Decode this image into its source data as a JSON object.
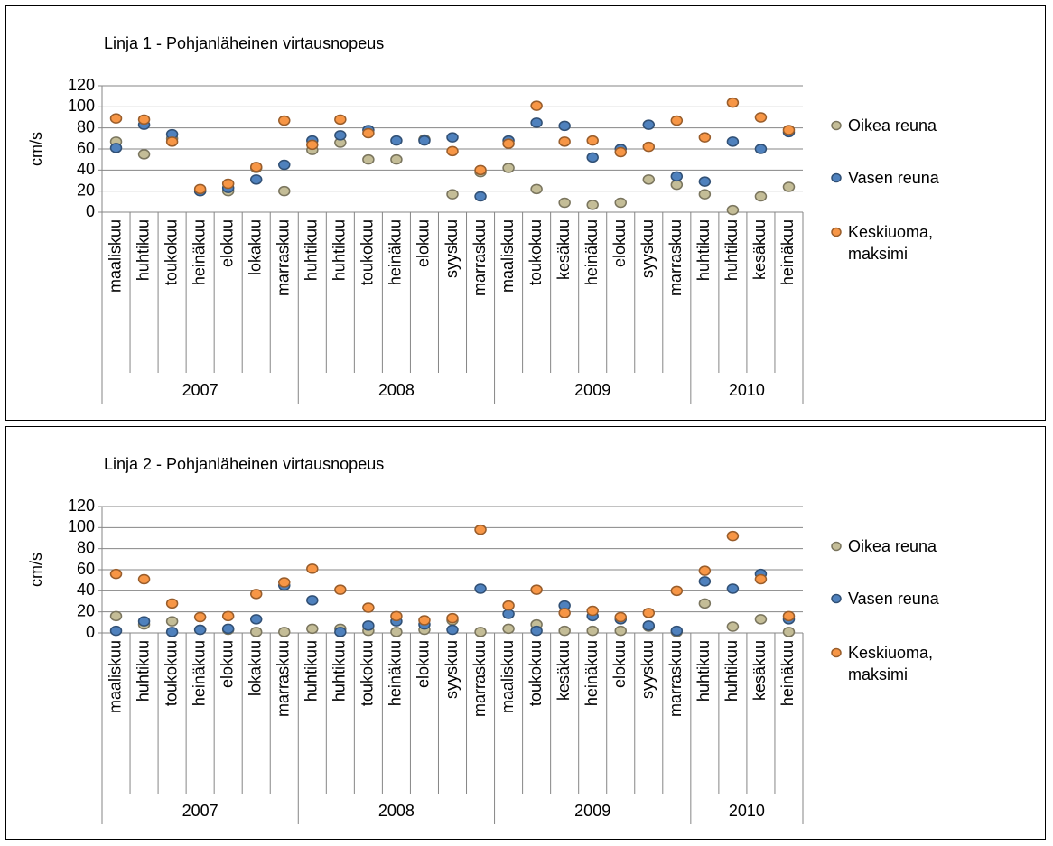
{
  "chart_data": [
    {
      "type": "scatter",
      "title": "Linja 1 - Pohjanläheinen  virtausnopeus",
      "y_label": "cm/s",
      "groups": [
        {
          "label": "2007",
          "categories": [
            "maaliskuu",
            "huhtikuu",
            "toukokuu",
            "heinäkuu",
            "elokuu",
            "lokakuu",
            "marraskuu"
          ]
        },
        {
          "label": "2008",
          "categories": [
            "huhtikuu",
            "huhtikuu",
            "toukokuu",
            "heinäkuu",
            "elokuu",
            "syyskuu",
            "marraskuu"
          ]
        },
        {
          "label": "2009",
          "categories": [
            "maaliskuu",
            "toukokuu",
            "kesäkuu",
            "heinäkuu",
            "elokuu",
            "syyskuu",
            "marraskuu"
          ]
        },
        {
          "label": "2010",
          "categories": [
            "huhtikuu",
            "huhtikuu",
            "kesäkuu",
            "heinäkuu"
          ]
        }
      ],
      "series": [
        {
          "name": "Oikea reuna",
          "color": "#c4bd97",
          "values": [
            67,
            55,
            70,
            20,
            20,
            42,
            20,
            59,
            66,
            50,
            50,
            69,
            17,
            38,
            42,
            22,
            9,
            7,
            9,
            31,
            26,
            17,
            2,
            15,
            24
          ]
        },
        {
          "name": "Vasen reuna",
          "color": "#4f81bd",
          "values": [
            61,
            83,
            74,
            20,
            23,
            31,
            45,
            68,
            73,
            78,
            68,
            68,
            71,
            15,
            68,
            85,
            82,
            52,
            60,
            83,
            34,
            29,
            67,
            60,
            76
          ]
        },
        {
          "name": "Keskiuoma, maksimi",
          "color": "#f79646",
          "values": [
            89,
            88,
            67,
            22,
            27,
            43,
            87,
            64,
            88,
            75,
            null,
            null,
            58,
            40,
            65,
            101,
            67,
            68,
            57,
            62,
            87,
            71,
            104,
            90,
            78
          ]
        }
      ],
      "ylim": [
        0,
        120
      ],
      "yticks": [
        0,
        20,
        40,
        60,
        80,
        100,
        120
      ],
      "grid": true,
      "legend": "right"
    },
    {
      "type": "scatter",
      "title": "Linja 2 - Pohjanläheinen  virtausnopeus",
      "y_label": "cm/s",
      "groups": [
        {
          "label": "2007",
          "categories": [
            "maaliskuu",
            "huhtikuu",
            "toukokuu",
            "heinäkuu",
            "elokuu",
            "lokakuu",
            "marraskuu"
          ]
        },
        {
          "label": "2008",
          "categories": [
            "huhtikuu",
            "huhtikuu",
            "toukokuu",
            "heinäkuu",
            "elokuu",
            "syyskuu",
            "marraskuu"
          ]
        },
        {
          "label": "2009",
          "categories": [
            "maaliskuu",
            "toukokuu",
            "kesäkuu",
            "heinäkuu",
            "elokuu",
            "syyskuu",
            "marraskuu"
          ]
        },
        {
          "label": "2010",
          "categories": [
            "huhtikuu",
            "huhtikuu",
            "kesäkuu",
            "heinäkuu"
          ]
        }
      ],
      "series": [
        {
          "name": "Oikea reuna",
          "color": "#c4bd97",
          "values": [
            16,
            8,
            11,
            3,
            3,
            1,
            1,
            4,
            4,
            2,
            1,
            3,
            12,
            1,
            4,
            8,
            2,
            2,
            2,
            6,
            1,
            28,
            6,
            13,
            1
          ]
        },
        {
          "name": "Vasen reuna",
          "color": "#4f81bd",
          "values": [
            2,
            11,
            1,
            3,
            4,
            13,
            45,
            31,
            1,
            7,
            11,
            8,
            3,
            42,
            18,
            2,
            26,
            16,
            13,
            7,
            2,
            49,
            42,
            56,
            13
          ]
        },
        {
          "name": "Keskiuoma, maksimi",
          "color": "#f79646",
          "values": [
            56,
            51,
            28,
            15,
            16,
            37,
            48,
            61,
            41,
            24,
            16,
            12,
            14,
            98,
            26,
            41,
            19,
            21,
            15,
            19,
            40,
            59,
            92,
            51,
            16
          ]
        }
      ],
      "ylim": [
        0,
        120
      ],
      "yticks": [
        0,
        20,
        40,
        60,
        80,
        100,
        120
      ],
      "grid": true,
      "legend": "right"
    }
  ]
}
